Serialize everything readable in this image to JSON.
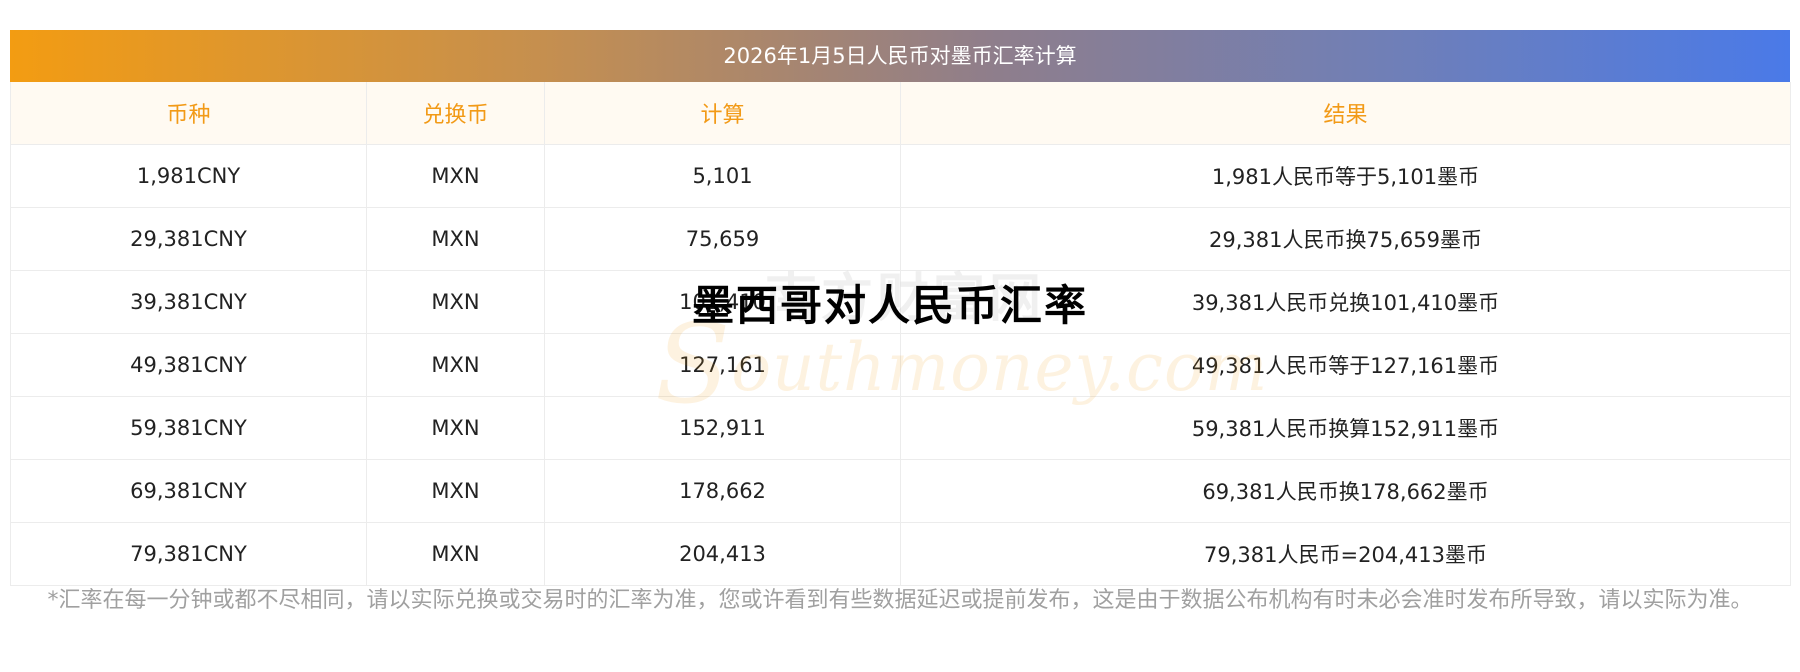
{
  "table": {
    "title": "2026年1月5日人民币对墨币汇率计算",
    "headers": [
      "币种",
      "兑换币",
      "计算",
      "结果"
    ],
    "rows": [
      [
        "1,981CNY",
        "MXN",
        "5,101",
        "1,981人民币等于5,101墨币"
      ],
      [
        "29,381CNY",
        "MXN",
        "75,659",
        "29,381人民币换75,659墨币"
      ],
      [
        "39,381CNY",
        "MXN",
        "101,410",
        "39,381人民币兑换101,410墨币"
      ],
      [
        "49,381CNY",
        "MXN",
        "127,161",
        "49,381人民币等于127,161墨币"
      ],
      [
        "59,381CNY",
        "MXN",
        "152,911",
        "59,381人民币换算152,911墨币"
      ],
      [
        "69,381CNY",
        "MXN",
        "178,662",
        "69,381人民币换178,662墨币"
      ],
      [
        "79,381CNY",
        "MXN",
        "204,413",
        "79,381人民币=204,413墨币"
      ]
    ]
  },
  "note": "*汇率在每一分钟或都不尽相同，请以实际兑换或交易时的汇率为准，您或许看到有些数据延迟或提前发布，这是由于数据公布机构有时未必会准时发布所导致，请以实际为准。",
  "overlay_title": "墨西哥对人民币汇率",
  "watermark": {
    "brand_initial": "S",
    "brand_rest": "outhmoney.com",
    "cn_text": "南方财富网"
  },
  "colors": {
    "gradient_start": "#f39c12",
    "gradient_end": "#4a7ae8",
    "header_text": "#f29a17",
    "note_text": "#a0a0a0"
  }
}
